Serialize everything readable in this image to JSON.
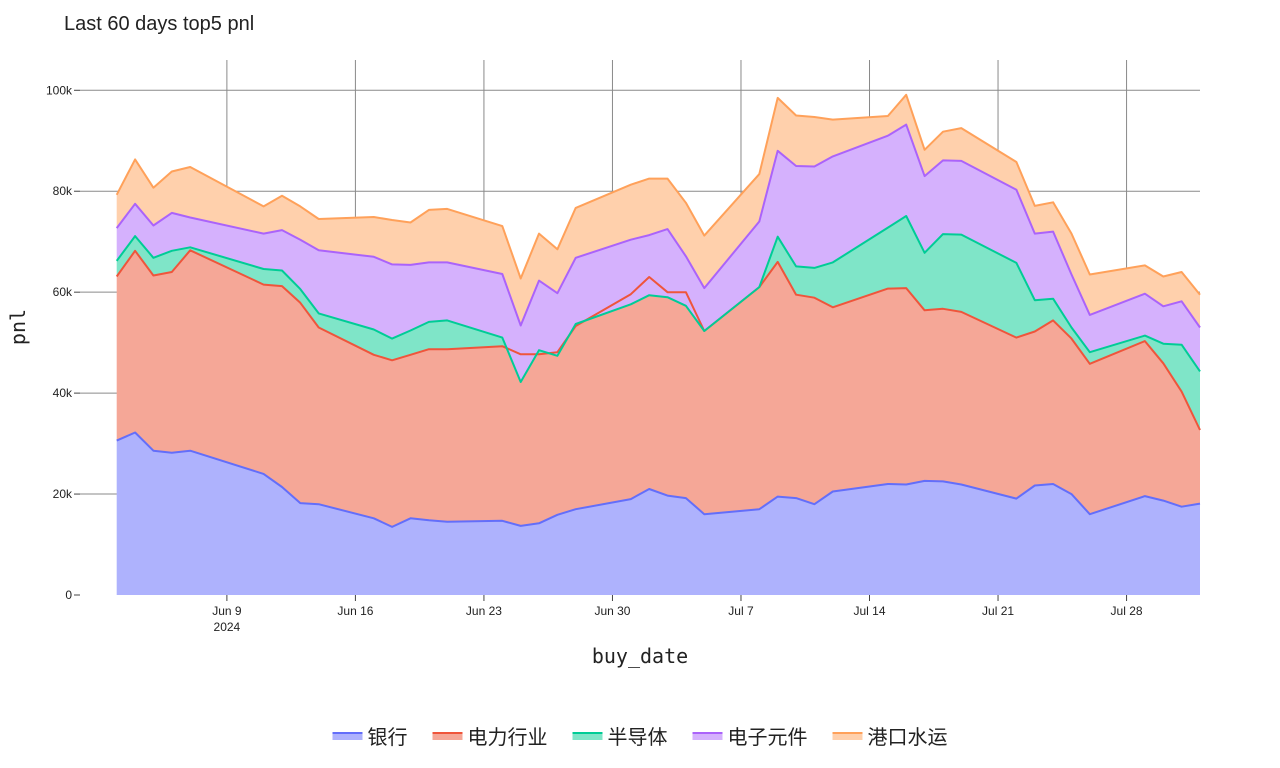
{
  "chart_data": {
    "type": "area",
    "stacked": true,
    "title": "Last 60 days top5 pnl",
    "xlabel": "buy_date",
    "ylabel": "pnl",
    "ylim": [
      0,
      106000
    ],
    "xlim": [
      "2024-06-01",
      "2024-08-01"
    ],
    "x_ticks": [
      {
        "date": "2024-06-09",
        "label": "Jun 9",
        "sublabel": "2024"
      },
      {
        "date": "2024-06-16",
        "label": "Jun 16",
        "sublabel": ""
      },
      {
        "date": "2024-06-23",
        "label": "Jun 23",
        "sublabel": ""
      },
      {
        "date": "2024-06-30",
        "label": "Jun 30",
        "sublabel": ""
      },
      {
        "date": "2024-07-07",
        "label": "Jul 7",
        "sublabel": ""
      },
      {
        "date": "2024-07-14",
        "label": "Jul 14",
        "sublabel": ""
      },
      {
        "date": "2024-07-21",
        "label": "Jul 21",
        "sublabel": ""
      },
      {
        "date": "2024-07-28",
        "label": "Jul 28",
        "sublabel": ""
      }
    ],
    "y_ticks": [
      {
        "value": 0,
        "label": "0"
      },
      {
        "value": 20000,
        "label": "20k"
      },
      {
        "value": 40000,
        "label": "40k"
      },
      {
        "value": 60000,
        "label": "60k"
      },
      {
        "value": 80000,
        "label": "80k"
      },
      {
        "value": 100000,
        "label": "100k"
      }
    ],
    "grid": true,
    "legend_position": "bottom-center",
    "x": [
      "2024-06-03",
      "2024-06-04",
      "2024-06-05",
      "2024-06-06",
      "2024-06-07",
      "2024-06-11",
      "2024-06-12",
      "2024-06-13",
      "2024-06-14",
      "2024-06-17",
      "2024-06-18",
      "2024-06-19",
      "2024-06-20",
      "2024-06-21",
      "2024-06-24",
      "2024-06-25",
      "2024-06-26",
      "2024-06-27",
      "2024-06-28",
      "2024-07-01",
      "2024-07-02",
      "2024-07-03",
      "2024-07-04",
      "2024-07-05",
      "2024-07-08",
      "2024-07-09",
      "2024-07-10",
      "2024-07-11",
      "2024-07-12",
      "2024-07-15",
      "2024-07-16",
      "2024-07-17",
      "2024-07-18",
      "2024-07-19",
      "2024-07-22",
      "2024-07-23",
      "2024-07-24",
      "2024-07-25",
      "2024-07-26",
      "2024-07-29",
      "2024-07-30",
      "2024-07-31",
      "2024-08-01"
    ],
    "series": [
      {
        "name": "银行",
        "color": "#636efa",
        "fill": "#aeb2fd",
        "values": [
          30600,
          32200,
          28600,
          28200,
          28600,
          24000,
          21400,
          18200,
          18000,
          15200,
          13500,
          15200,
          14800,
          14500,
          14700,
          13700,
          14200,
          15900,
          17000,
          19000,
          21000,
          19700,
          19200,
          16000,
          17000,
          19500,
          19200,
          18000,
          20500,
          22000,
          21900,
          22600,
          22500,
          21900,
          19100,
          21700,
          22000,
          20000,
          16000,
          19600,
          18700,
          17500,
          18100
        ]
      },
      {
        "name": "电力行业",
        "color": "#ef553b",
        "fill": "#f5a797",
        "values": [
          32500,
          36000,
          34700,
          35800,
          39700,
          37500,
          39800,
          39700,
          35000,
          32400,
          33000,
          32400,
          33900,
          34200,
          34600,
          34000,
          33500,
          32200,
          36300,
          40600,
          42000,
          40300,
          40800,
          36300,
          44000,
          46500,
          40300,
          40900,
          36500,
          38700,
          38900,
          33800,
          34200,
          34200,
          31900,
          30500,
          32400,
          30800,
          29800,
          30700,
          27200,
          22800,
          14600
        ]
      },
      {
        "name": "半导体",
        "color": "#00cc96",
        "fill": "#7fe5c8",
        "values": [
          3100,
          2900,
          3500,
          4200,
          600,
          3100,
          3100,
          2700,
          2800,
          5000,
          4300,
          4800,
          5400,
          5700,
          1700,
          -5500,
          800,
          -700,
          400,
          -2000,
          -3600,
          -1000,
          -2700,
          0,
          0,
          5000,
          5600,
          5900,
          8900,
          12100,
          14300,
          11400,
          14800,
          15300,
          14800,
          6200,
          4300,
          2200,
          2300,
          1100,
          3900,
          9300,
          11600
        ]
      },
      {
        "name": "电子元件",
        "color": "#ab63fa",
        "fill": "#d5b1fd",
        "values": [
          6500,
          6400,
          6400,
          7500,
          5900,
          7000,
          8000,
          9800,
          12500,
          14400,
          14700,
          13000,
          11800,
          11500,
          12600,
          11200,
          13800,
          12400,
          13100,
          12800,
          11900,
          13500,
          9800,
          8500,
          13000,
          17000,
          19900,
          20100,
          21000,
          18200,
          18100,
          15200,
          14600,
          14600,
          14500,
          13200,
          13300,
          10500,
          7400,
          8300,
          7400,
          8600,
          8700
        ]
      },
      {
        "name": "港口水运",
        "color": "#ffa15a",
        "fill": "#ffd0ac",
        "values": [
          6600,
          8800,
          7500,
          8200,
          10000,
          5400,
          6800,
          6600,
          6200,
          7900,
          8800,
          8400,
          10400,
          10600,
          9500,
          9300,
          9300,
          8700,
          9900,
          10900,
          11200,
          10000,
          10600,
          10400,
          9400,
          10500,
          10000,
          9800,
          7300,
          3900,
          5900,
          5200,
          5700,
          6500,
          5500,
          5500,
          5800,
          8100,
          8000,
          5600,
          5900,
          5800,
          6500
        ]
      }
    ]
  }
}
